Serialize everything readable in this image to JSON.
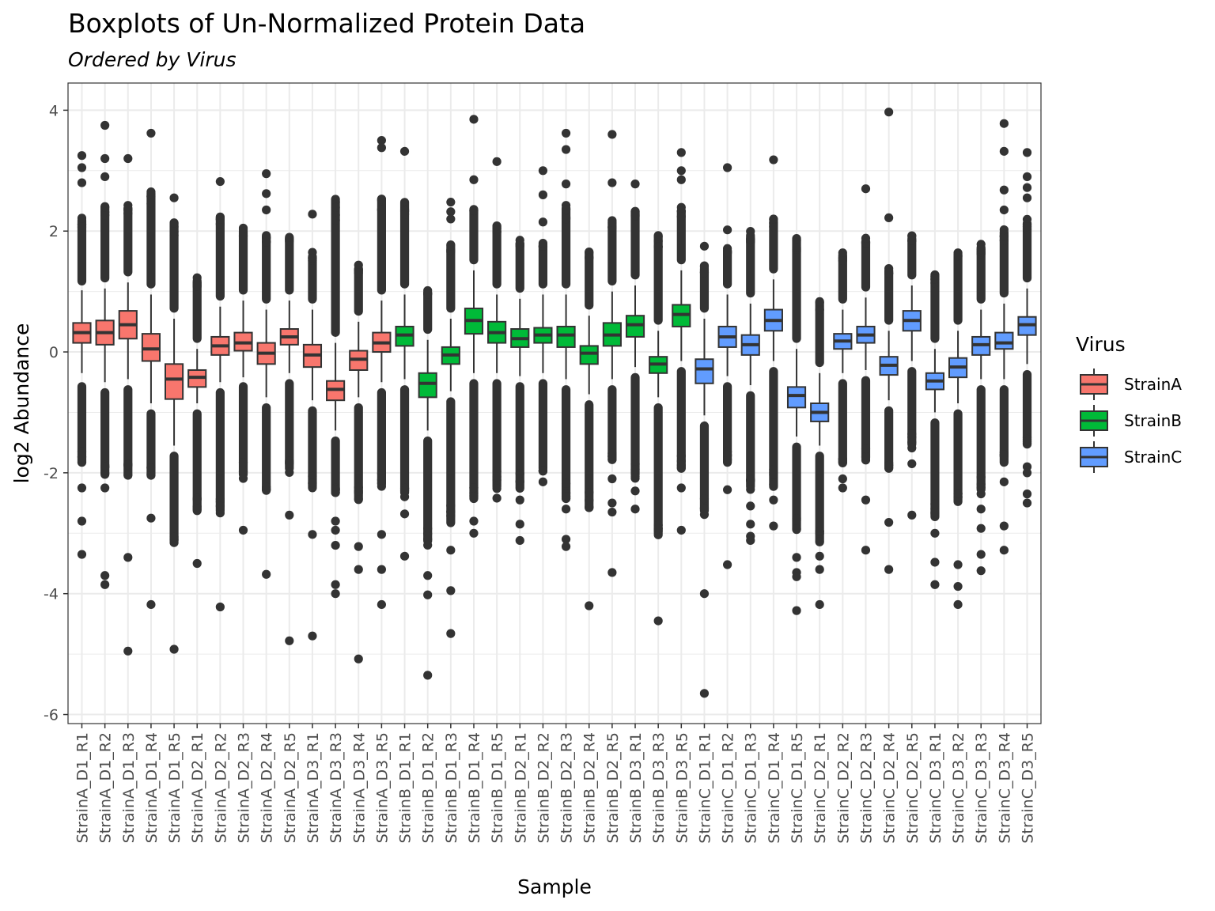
{
  "chart_data": {
    "type": "boxplot",
    "title": "Boxplots of Un-Normalized Protein Data",
    "subtitle": "Ordered by  Virus",
    "xlabel": "Sample",
    "ylabel": "log2 Abundance",
    "ylim": [
      -6.15,
      4.45
    ],
    "yticks": [
      -6,
      -4,
      -2,
      0,
      2,
      4
    ],
    "legend": {
      "title": "Virus",
      "position": "right",
      "entries": [
        {
          "name": "StrainA",
          "color": "#F8766D"
        },
        {
          "name": "StrainB",
          "color": "#00BA38"
        },
        {
          "name": "StrainC",
          "color": "#619CFF"
        }
      ]
    },
    "samples": [
      {
        "name": "StrainA_D1_R1",
        "group": "StrainA",
        "q1": 0.15,
        "median": 0.32,
        "q3": 0.48,
        "whisker_low": -0.35,
        "whisker_high": 1.02,
        "outlier_dense_low": [
          -1.9,
          -0.5
        ],
        "outlier_dense_high": [
          1.1,
          2.25
        ],
        "outliers": [
          3.25,
          3.05,
          2.8,
          -2.25,
          -2.8,
          -3.35
        ]
      },
      {
        "name": "StrainA_D1_R2",
        "group": "StrainA",
        "q1": 0.12,
        "median": 0.32,
        "q3": 0.52,
        "whisker_low": -0.5,
        "whisker_high": 1.05,
        "outlier_dense_low": [
          -2.1,
          -0.6
        ],
        "outlier_dense_high": [
          1.15,
          2.45
        ],
        "outliers": [
          3.75,
          3.2,
          2.9,
          -2.25,
          -3.7,
          -3.85
        ]
      },
      {
        "name": "StrainA_D1_R3",
        "group": "StrainA",
        "q1": 0.22,
        "median": 0.45,
        "q3": 0.68,
        "whisker_low": -0.45,
        "whisker_high": 1.15,
        "outlier_dense_low": [
          -2.1,
          -0.55
        ],
        "outlier_dense_high": [
          1.25,
          2.45
        ],
        "outliers": [
          3.2,
          -3.4,
          -4.95
        ]
      },
      {
        "name": "StrainA_D1_R4",
        "group": "StrainA",
        "q1": -0.15,
        "median": 0.05,
        "q3": 0.3,
        "whisker_low": -0.85,
        "whisker_high": 0.95,
        "outlier_dense_low": [
          -2.1,
          -0.95
        ],
        "outlier_dense_high": [
          1.05,
          2.7
        ],
        "outliers": [
          3.62,
          -2.75,
          -4.18
        ]
      },
      {
        "name": "StrainA_D1_R5",
        "group": "StrainA",
        "q1": -0.78,
        "median": -0.45,
        "q3": -0.2,
        "whisker_low": -1.55,
        "whisker_high": 0.55,
        "outlier_dense_low": [
          -3.2,
          -1.65
        ],
        "outlier_dense_high": [
          0.65,
          2.2
        ],
        "outliers": [
          2.55,
          -4.92
        ]
      },
      {
        "name": "StrainA_D2_R1",
        "group": "StrainA",
        "q1": -0.58,
        "median": -0.42,
        "q3": -0.3,
        "whisker_low": -0.85,
        "whisker_high": 0.05,
        "outlier_dense_low": [
          -2.7,
          -0.95
        ],
        "outlier_dense_high": [
          0.15,
          1.25
        ],
        "outliers": [
          -3.5
        ]
      },
      {
        "name": "StrainA_D2_R2",
        "group": "StrainA",
        "q1": -0.05,
        "median": 0.1,
        "q3": 0.25,
        "whisker_low": -0.5,
        "whisker_high": 0.75,
        "outlier_dense_low": [
          -2.7,
          -0.6
        ],
        "outlier_dense_high": [
          0.85,
          2.3
        ],
        "outliers": [
          2.82,
          -4.22
        ]
      },
      {
        "name": "StrainA_D2_R3",
        "group": "StrainA",
        "q1": 0.02,
        "median": 0.15,
        "q3": 0.32,
        "whisker_low": -0.42,
        "whisker_high": 0.85,
        "outlier_dense_low": [
          -2.1,
          -0.5
        ],
        "outlier_dense_high": [
          0.95,
          2.05
        ],
        "outliers": [
          -2.95
        ]
      },
      {
        "name": "StrainA_D2_R4",
        "group": "StrainA",
        "q1": -0.2,
        "median": -0.02,
        "q3": 0.15,
        "whisker_low": -0.75,
        "whisker_high": 0.7,
        "outlier_dense_low": [
          -2.35,
          -0.85
        ],
        "outlier_dense_high": [
          0.8,
          2.0
        ],
        "outliers": [
          2.95,
          2.62,
          2.35,
          -3.68
        ]
      },
      {
        "name": "StrainA_D2_R5",
        "group": "StrainA",
        "q1": 0.12,
        "median": 0.25,
        "q3": 0.38,
        "whisker_low": -0.35,
        "whisker_high": 0.85,
        "outlier_dense_low": [
          -2.0,
          -0.45
        ],
        "outlier_dense_high": [
          0.95,
          1.95
        ],
        "outliers": [
          -2.7,
          -4.78
        ]
      },
      {
        "name": "StrainA_D3_R1",
        "group": "StrainA",
        "q1": -0.25,
        "median": -0.05,
        "q3": 0.12,
        "whisker_low": -0.8,
        "whisker_high": 0.7,
        "outlier_dense_low": [
          -2.3,
          -0.9
        ],
        "outlier_dense_high": [
          0.8,
          1.65
        ],
        "outliers": [
          2.28,
          -3.02,
          -4.7
        ]
      },
      {
        "name": "StrainA_D3_R3",
        "group": "StrainA",
        "q1": -0.8,
        "median": -0.62,
        "q3": -0.48,
        "whisker_low": -1.3,
        "whisker_high": 0.15,
        "outlier_dense_low": [
          -2.4,
          -1.4
        ],
        "outlier_dense_high": [
          0.25,
          2.6
        ],
        "outliers": [
          -2.8,
          -2.95,
          -3.2,
          -3.85,
          -4.0
        ]
      },
      {
        "name": "StrainA_D3_R4",
        "group": "StrainA",
        "q1": -0.3,
        "median": -0.12,
        "q3": 0.02,
        "whisker_low": -0.75,
        "whisker_high": 0.5,
        "outlier_dense_low": [
          -2.5,
          -0.85
        ],
        "outlier_dense_high": [
          0.6,
          1.45
        ],
        "outliers": [
          -3.22,
          -3.6,
          -5.08
        ]
      },
      {
        "name": "StrainA_D3_R5",
        "group": "StrainA",
        "q1": 0.0,
        "median": 0.15,
        "q3": 0.32,
        "whisker_low": -0.5,
        "whisker_high": 0.85,
        "outlier_dense_low": [
          -2.25,
          -0.6
        ],
        "outlier_dense_high": [
          0.95,
          2.6
        ],
        "outliers": [
          3.5,
          3.38,
          -3.02,
          -3.6,
          -4.18
        ]
      },
      {
        "name": "StrainB_D1_R1",
        "group": "StrainB",
        "q1": 0.1,
        "median": 0.28,
        "q3": 0.42,
        "whisker_low": -0.45,
        "whisker_high": 0.95,
        "outlier_dense_low": [
          -2.4,
          -0.55
        ],
        "outlier_dense_high": [
          1.05,
          2.55
        ],
        "outliers": [
          3.32,
          -2.68,
          -3.38
        ]
      },
      {
        "name": "StrainB_D1_R2",
        "group": "StrainB",
        "q1": -0.75,
        "median": -0.52,
        "q3": -0.35,
        "whisker_low": -1.3,
        "whisker_high": 0.2,
        "outlier_dense_low": [
          -3.2,
          -1.4
        ],
        "outlier_dense_high": [
          0.3,
          1.05
        ],
        "outliers": [
          -3.7,
          -4.02,
          -5.35
        ]
      },
      {
        "name": "StrainB_D1_R3",
        "group": "StrainB",
        "q1": -0.2,
        "median": -0.05,
        "q3": 0.08,
        "whisker_low": -0.65,
        "whisker_high": 0.55,
        "outlier_dense_low": [
          -2.9,
          -0.75
        ],
        "outlier_dense_high": [
          0.65,
          1.8
        ],
        "outliers": [
          2.48,
          2.32,
          2.2,
          -3.28,
          -3.95,
          -4.66
        ]
      },
      {
        "name": "StrainB_D1_R4",
        "group": "StrainB",
        "q1": 0.3,
        "median": 0.52,
        "q3": 0.72,
        "whisker_low": -0.35,
        "whisker_high": 1.35,
        "outlier_dense_low": [
          -2.5,
          -0.45
        ],
        "outlier_dense_high": [
          1.45,
          2.4
        ],
        "outliers": [
          3.85,
          2.85,
          -2.8,
          -3.0
        ]
      },
      {
        "name": "StrainB_D1_R5",
        "group": "StrainB",
        "q1": 0.15,
        "median": 0.32,
        "q3": 0.5,
        "whisker_low": -0.35,
        "whisker_high": 0.95,
        "outlier_dense_low": [
          -2.3,
          -0.45
        ],
        "outlier_dense_high": [
          1.05,
          2.15
        ],
        "outliers": [
          3.15,
          -2.42
        ]
      },
      {
        "name": "StrainB_D2_R1",
        "group": "StrainB",
        "q1": 0.08,
        "median": 0.22,
        "q3": 0.38,
        "whisker_low": -0.4,
        "whisker_high": 0.88,
        "outlier_dense_low": [
          -2.3,
          -0.5
        ],
        "outlier_dense_high": [
          0.98,
          1.85
        ],
        "outliers": [
          -2.45,
          -2.85,
          -3.12
        ]
      },
      {
        "name": "StrainB_D2_R2",
        "group": "StrainB",
        "q1": 0.15,
        "median": 0.28,
        "q3": 0.4,
        "whisker_low": -0.35,
        "whisker_high": 0.95,
        "outlier_dense_low": [
          -2.0,
          -0.45
        ],
        "outlier_dense_high": [
          1.05,
          1.85
        ],
        "outliers": [
          3.0,
          2.6,
          2.15,
          -2.15
        ]
      },
      {
        "name": "StrainB_D2_R3",
        "group": "StrainB",
        "q1": 0.08,
        "median": 0.28,
        "q3": 0.42,
        "whisker_low": -0.45,
        "whisker_high": 0.95,
        "outlier_dense_low": [
          -2.5,
          -0.55
        ],
        "outlier_dense_high": [
          1.05,
          2.45
        ],
        "outliers": [
          3.62,
          3.35,
          2.78,
          -2.6,
          -3.1,
          -3.22
        ]
      },
      {
        "name": "StrainB_D2_R4",
        "group": "StrainB",
        "q1": -0.2,
        "median": -0.02,
        "q3": 0.1,
        "whisker_low": -0.7,
        "whisker_high": 0.6,
        "outlier_dense_low": [
          -2.65,
          -0.8
        ],
        "outlier_dense_high": [
          0.7,
          1.7
        ],
        "outliers": [
          -4.2
        ]
      },
      {
        "name": "StrainB_D2_R5",
        "group": "StrainB",
        "q1": 0.1,
        "median": 0.28,
        "q3": 0.48,
        "whisker_low": -0.45,
        "whisker_high": 1.0,
        "outlier_dense_low": [
          -1.85,
          -0.55
        ],
        "outlier_dense_high": [
          1.1,
          2.2
        ],
        "outliers": [
          3.6,
          2.8,
          -2.1,
          -2.5,
          -2.65,
          -3.65
        ]
      },
      {
        "name": "StrainB_D3_R1",
        "group": "StrainB",
        "q1": 0.25,
        "median": 0.45,
        "q3": 0.6,
        "whisker_low": -0.25,
        "whisker_high": 1.1,
        "outlier_dense_low": [
          -2.1,
          -0.35
        ],
        "outlier_dense_high": [
          1.2,
          2.4
        ],
        "outliers": [
          2.78,
          -2.3,
          -2.6
        ]
      },
      {
        "name": "StrainB_D3_R3",
        "group": "StrainB",
        "q1": -0.35,
        "median": -0.2,
        "q3": -0.08,
        "whisker_low": -0.75,
        "whisker_high": 0.35,
        "outlier_dense_low": [
          -3.1,
          -0.85
        ],
        "outlier_dense_high": [
          0.45,
          2.0
        ],
        "outliers": [
          -4.45
        ]
      },
      {
        "name": "StrainB_D3_R5",
        "group": "StrainB",
        "q1": 0.42,
        "median": 0.62,
        "q3": 0.78,
        "whisker_low": -0.15,
        "whisker_high": 1.35,
        "outlier_dense_low": [
          -2.0,
          -0.25
        ],
        "outlier_dense_high": [
          1.45,
          2.4
        ],
        "outliers": [
          3.3,
          3.0,
          2.85,
          -2.25,
          -2.95
        ]
      },
      {
        "name": "StrainC_D1_R1",
        "group": "StrainC",
        "q1": -0.52,
        "median": -0.28,
        "q3": -0.12,
        "whisker_low": -1.05,
        "whisker_high": 0.55,
        "outlier_dense_low": [
          -2.7,
          -1.15
        ],
        "outlier_dense_high": [
          0.65,
          1.45
        ],
        "outliers": [
          1.75,
          -4.0,
          -5.65
        ]
      },
      {
        "name": "StrainC_D1_R2",
        "group": "StrainC",
        "q1": 0.08,
        "median": 0.25,
        "q3": 0.42,
        "whisker_low": -0.4,
        "whisker_high": 0.95,
        "outlier_dense_low": [
          -1.9,
          -0.5
        ],
        "outlier_dense_high": [
          1.05,
          1.75
        ],
        "outliers": [
          3.05,
          2.02,
          -2.28,
          -3.52
        ]
      },
      {
        "name": "StrainC_D1_R3",
        "group": "StrainC",
        "q1": -0.05,
        "median": 0.12,
        "q3": 0.28,
        "whisker_low": -0.55,
        "whisker_high": 0.8,
        "outlier_dense_low": [
          -2.3,
          -0.65
        ],
        "outlier_dense_high": [
          0.9,
          2.0
        ],
        "outliers": [
          -2.55,
          -2.85,
          -3.05,
          -3.12
        ]
      },
      {
        "name": "StrainC_D1_R4",
        "group": "StrainC",
        "q1": 0.35,
        "median": 0.52,
        "q3": 0.7,
        "whisker_low": -0.15,
        "whisker_high": 1.2,
        "outlier_dense_low": [
          -2.3,
          -0.25
        ],
        "outlier_dense_high": [
          1.3,
          2.22
        ],
        "outliers": [
          3.18,
          -2.45,
          -2.88
        ]
      },
      {
        "name": "StrainC_D1_R5",
        "group": "StrainC",
        "q1": -0.92,
        "median": -0.72,
        "q3": -0.58,
        "whisker_low": -1.4,
        "whisker_high": 0.05,
        "outlier_dense_low": [
          -3.0,
          -1.5
        ],
        "outlier_dense_high": [
          0.15,
          1.95
        ],
        "outliers": [
          -3.4,
          -3.65,
          -3.72,
          -4.28
        ]
      },
      {
        "name": "StrainC_D2_R1",
        "group": "StrainC",
        "q1": -1.15,
        "median": -1.0,
        "q3": -0.85,
        "whisker_low": -1.55,
        "whisker_high": -0.35,
        "outlier_dense_low": [
          -3.2,
          -1.65
        ],
        "outlier_dense_high": [
          -0.25,
          0.85
        ],
        "outliers": [
          -3.38,
          -3.6,
          -4.18
        ]
      },
      {
        "name": "StrainC_D2_R2",
        "group": "StrainC",
        "q1": 0.05,
        "median": 0.18,
        "q3": 0.3,
        "whisker_low": -0.35,
        "whisker_high": 0.7,
        "outlier_dense_low": [
          -1.9,
          -0.45
        ],
        "outlier_dense_high": [
          0.8,
          1.65
        ],
        "outliers": [
          -2.1,
          -2.25
        ]
      },
      {
        "name": "StrainC_D2_R3",
        "group": "StrainC",
        "q1": 0.15,
        "median": 0.28,
        "q3": 0.42,
        "whisker_low": -0.3,
        "whisker_high": 0.9,
        "outlier_dense_low": [
          -1.8,
          -0.4
        ],
        "outlier_dense_high": [
          1.0,
          1.9
        ],
        "outliers": [
          2.7,
          -2.45,
          -3.28
        ]
      },
      {
        "name": "StrainC_D2_R4",
        "group": "StrainC",
        "q1": -0.38,
        "median": -0.22,
        "q3": -0.08,
        "whisker_low": -0.8,
        "whisker_high": 0.35,
        "outlier_dense_low": [
          -2.0,
          -0.9
        ],
        "outlier_dense_high": [
          0.45,
          1.4
        ],
        "outliers": [
          3.97,
          2.22,
          -2.82,
          -3.6
        ]
      },
      {
        "name": "StrainC_D2_R5",
        "group": "StrainC",
        "q1": 0.35,
        "median": 0.52,
        "q3": 0.68,
        "whisker_low": -0.15,
        "whisker_high": 1.1,
        "outlier_dense_low": [
          -1.6,
          -0.25
        ],
        "outlier_dense_high": [
          1.2,
          1.95
        ],
        "outliers": [
          -1.85,
          -2.7
        ]
      },
      {
        "name": "StrainC_D3_R1",
        "group": "StrainC",
        "q1": -0.62,
        "median": -0.48,
        "q3": -0.35,
        "whisker_low": -1.0,
        "whisker_high": 0.05,
        "outlier_dense_low": [
          -2.8,
          -1.1
        ],
        "outlier_dense_high": [
          0.15,
          1.35
        ],
        "outliers": [
          -3.0,
          -3.48,
          -3.85
        ]
      },
      {
        "name": "StrainC_D3_R2",
        "group": "StrainC",
        "q1": -0.42,
        "median": -0.25,
        "q3": -0.1,
        "whisker_low": -0.85,
        "whisker_high": 0.35,
        "outlier_dense_low": [
          -2.55,
          -0.95
        ],
        "outlier_dense_high": [
          0.45,
          1.65
        ],
        "outliers": [
          -3.52,
          -3.88,
          -4.18
        ]
      },
      {
        "name": "StrainC_D3_R3",
        "group": "StrainC",
        "q1": -0.05,
        "median": 0.12,
        "q3": 0.25,
        "whisker_low": -0.45,
        "whisker_high": 0.7,
        "outlier_dense_low": [
          -2.35,
          -0.55
        ],
        "outlier_dense_high": [
          0.8,
          1.8
        ],
        "outliers": [
          -2.6,
          -2.92,
          -3.35,
          -3.62
        ]
      },
      {
        "name": "StrainC_D3_R4",
        "group": "StrainC",
        "q1": 0.05,
        "median": 0.15,
        "q3": 0.32,
        "whisker_low": -0.45,
        "whisker_high": 0.8,
        "outlier_dense_low": [
          -1.9,
          -0.55
        ],
        "outlier_dense_high": [
          0.9,
          2.05
        ],
        "outliers": [
          3.78,
          3.32,
          2.68,
          2.35,
          -2.15,
          -2.88,
          -3.28
        ]
      },
      {
        "name": "StrainC_D3_R5",
        "group": "StrainC",
        "q1": 0.28,
        "median": 0.45,
        "q3": 0.58,
        "whisker_low": -0.2,
        "whisker_high": 1.05,
        "outlier_dense_low": [
          -1.6,
          -0.3
        ],
        "outlier_dense_high": [
          1.15,
          2.2
        ],
        "outliers": [
          3.3,
          2.9,
          2.72,
          2.55,
          -1.9,
          -2.0,
          -2.35,
          -2.5
        ]
      }
    ]
  }
}
